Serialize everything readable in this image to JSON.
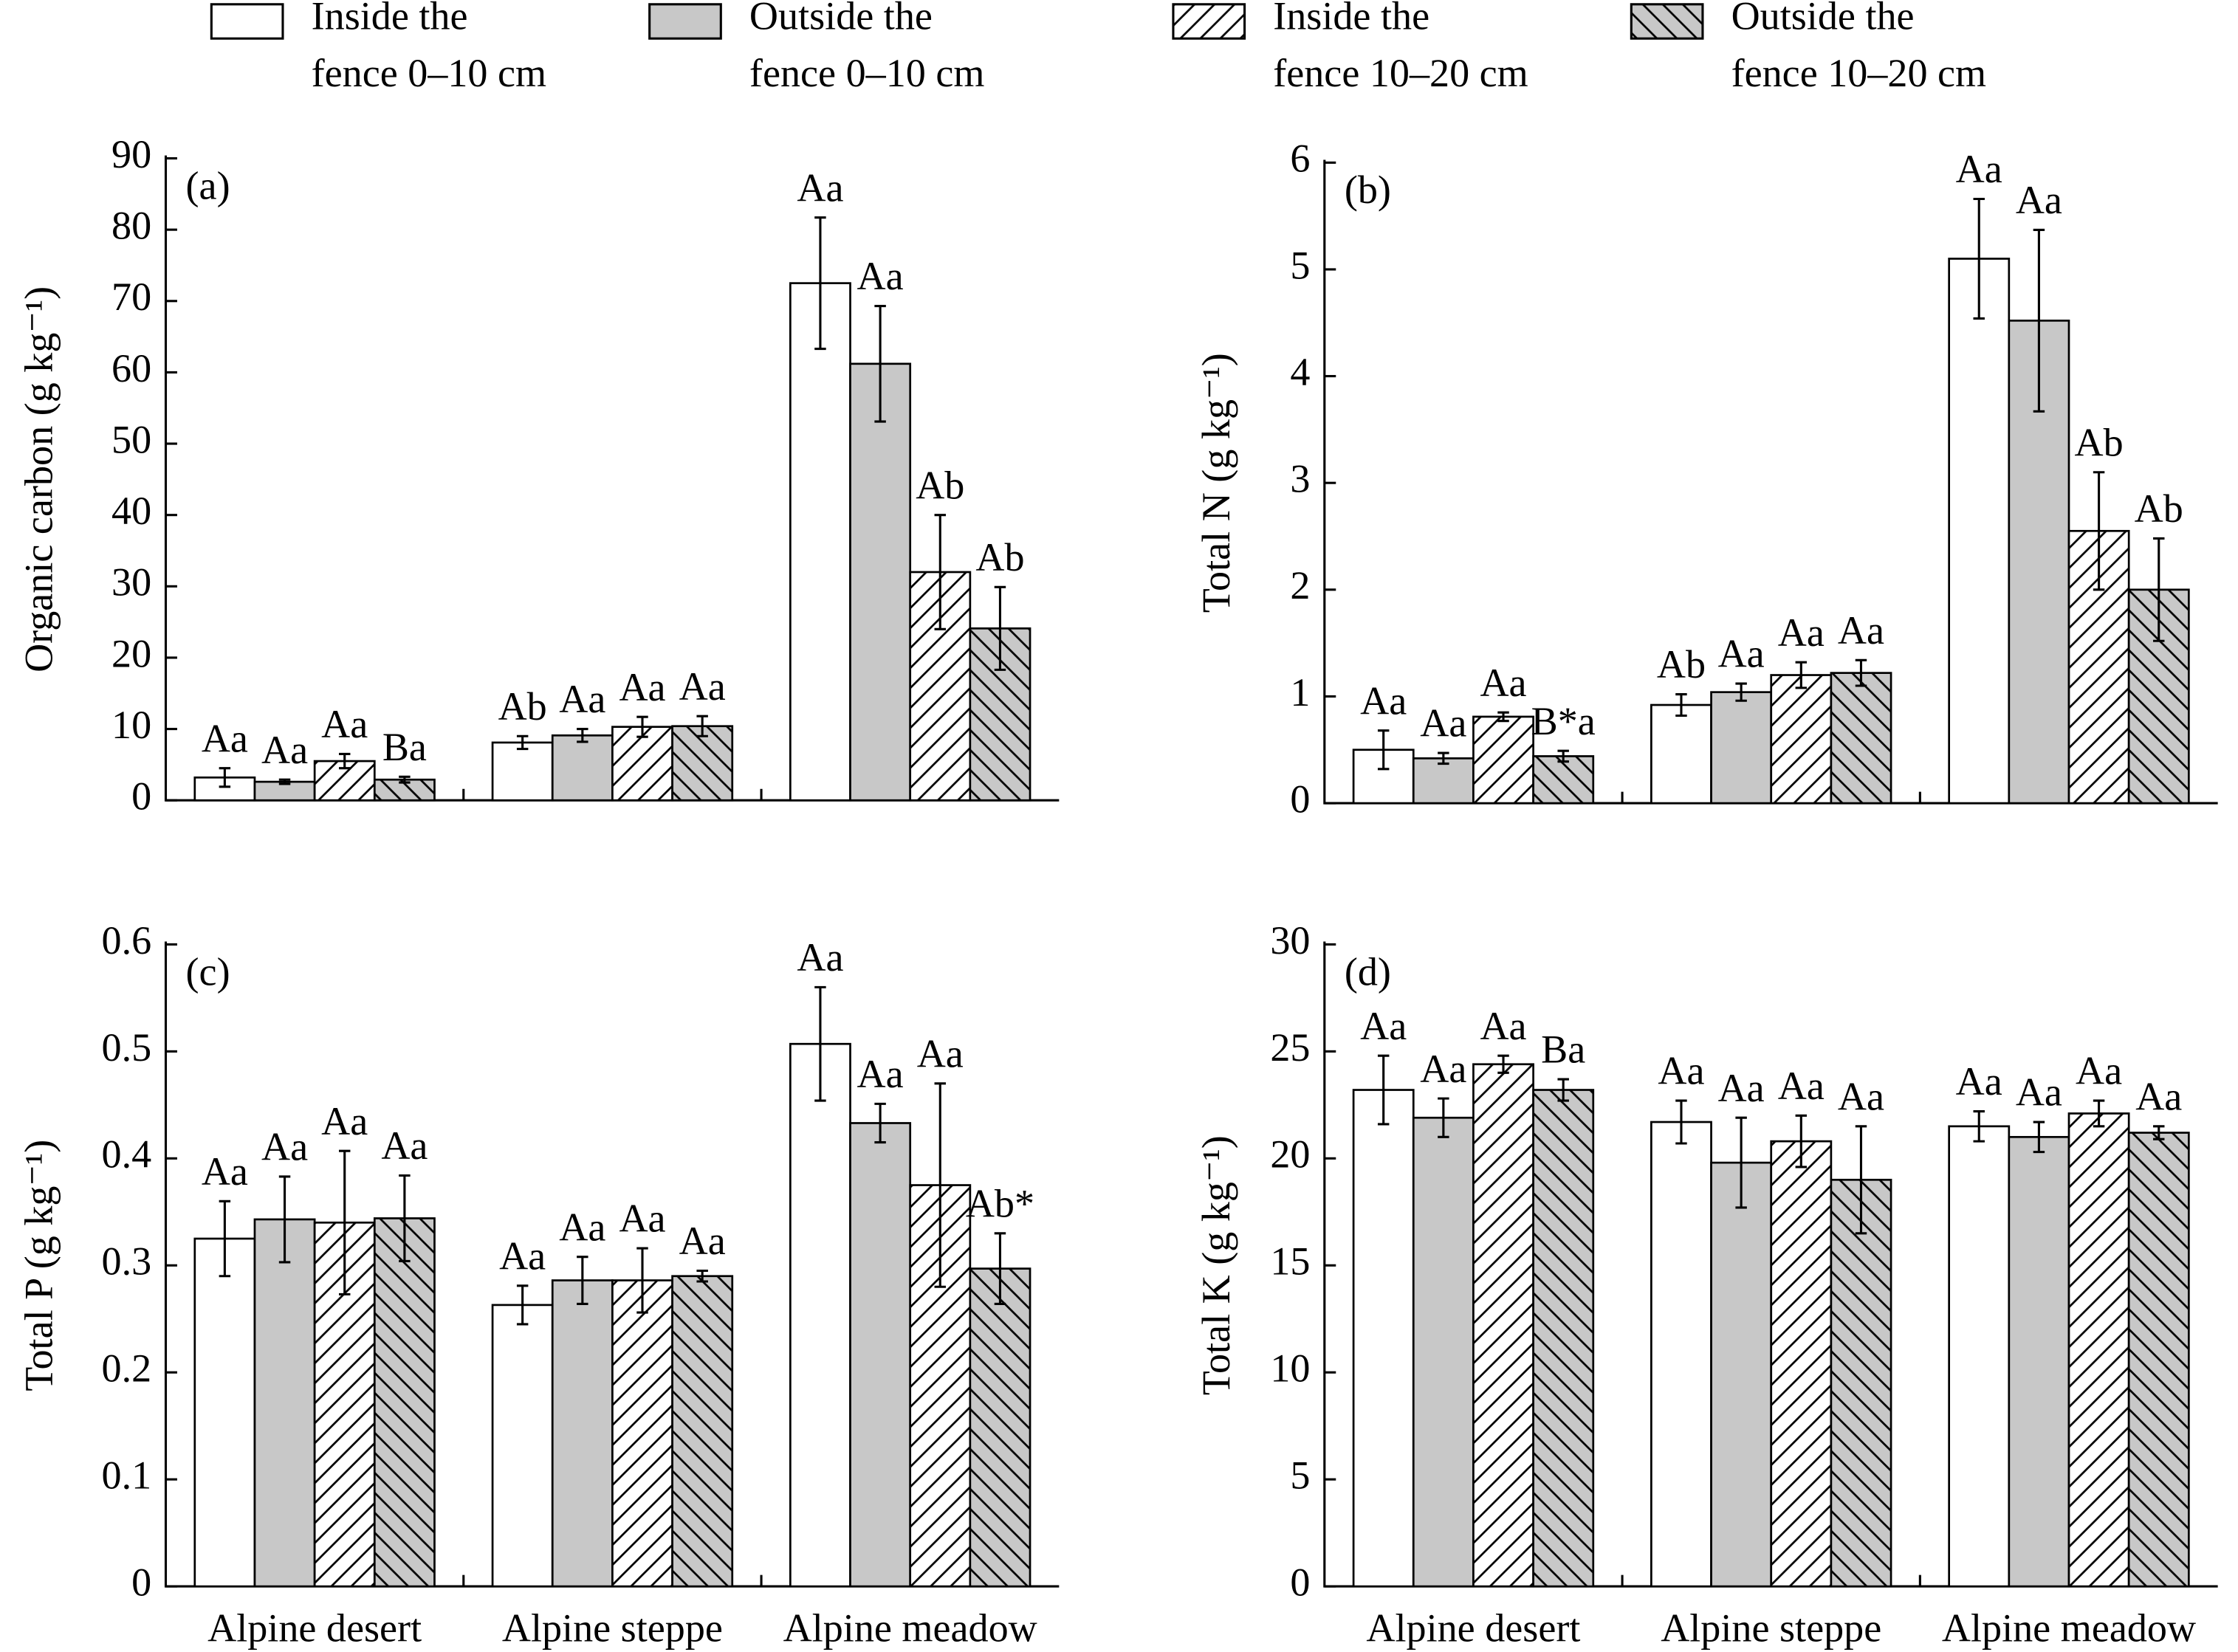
{
  "legend": [
    {
      "lines": [
        "Inside the",
        "fence 0–10 cm"
      ],
      "fill": "#ffffff",
      "pattern": "none"
    },
    {
      "lines": [
        "Outside the",
        "fence 0–10 cm"
      ],
      "fill": "#c8c8c8",
      "pattern": "none"
    },
    {
      "lines": [
        "Inside the",
        "fence 10–20 cm"
      ],
      "fill": "#ffffff",
      "pattern": "forward"
    },
    {
      "lines": [
        "Outside the",
        "fence 10–20 cm"
      ],
      "fill": "#c8c8c8",
      "pattern": "back"
    }
  ],
  "chart_data": [
    {
      "type": "bar",
      "panel": "(a)",
      "ylabel": "Organic carbon (g kg⁻¹)",
      "ylim": [
        0,
        90
      ],
      "yticks": [
        0,
        10,
        20,
        30,
        40,
        50,
        60,
        70,
        80,
        90
      ],
      "series": [
        {
          "values": [
            3.2,
            8.1,
            72.5
          ],
          "errors": [
            1.3,
            0.9,
            9.2
          ],
          "labels": [
            "Aa",
            "Ab",
            "Aa"
          ]
        },
        {
          "values": [
            2.6,
            9.1,
            61.2
          ],
          "errors": [
            0.3,
            0.9,
            8.1
          ],
          "labels": [
            "Aa",
            "Aa",
            "Aa"
          ]
        },
        {
          "values": [
            5.5,
            10.3,
            32
          ],
          "errors": [
            1.0,
            1.4,
            8
          ],
          "labels": [
            "Aa",
            "Aa",
            "Ab"
          ]
        },
        {
          "values": [
            2.9,
            10.4,
            24.1
          ],
          "errors": [
            0.4,
            1.4,
            5.8
          ],
          "labels": [
            "Ba",
            "Aa",
            "Ab"
          ]
        }
      ]
    },
    {
      "type": "bar",
      "panel": "(b)",
      "ylabel": "Total N (g kg⁻¹)",
      "ylim": [
        0,
        6
      ],
      "yticks": [
        0,
        1,
        2,
        3,
        4,
        5,
        6
      ],
      "series": [
        {
          "values": [
            0.5,
            0.92,
            5.1
          ],
          "errors": [
            0.18,
            0.1,
            0.56
          ],
          "labels": [
            "Aa",
            "Ab",
            "Aa"
          ]
        },
        {
          "values": [
            0.42,
            1.04,
            4.52
          ],
          "errors": [
            0.05,
            0.08,
            0.85
          ],
          "labels": [
            "Aa",
            "Aa",
            "Aa"
          ]
        },
        {
          "values": [
            0.81,
            1.2,
            2.55
          ],
          "errors": [
            0.04,
            0.12,
            0.55
          ],
          "labels": [
            "Aa",
            "Aa",
            "Ab"
          ]
        },
        {
          "values": [
            0.44,
            1.22,
            2.0
          ],
          "errors": [
            0.05,
            0.12,
            0.48
          ],
          "labels": [
            "B*a",
            "Aa",
            "Ab"
          ]
        }
      ]
    },
    {
      "type": "bar",
      "panel": "(c)",
      "ylabel": "Total P (g kg⁻¹)",
      "ylim": [
        0,
        0.6
      ],
      "yticks": [
        0,
        0.1,
        0.2,
        0.3,
        0.4,
        0.5,
        0.6
      ],
      "categories": [
        "Alpine desert",
        "Alpine steppe",
        "Alpine meadow"
      ],
      "series": [
        {
          "values": [
            0.325,
            0.263,
            0.507
          ],
          "errors": [
            0.035,
            0.018,
            0.053
          ],
          "labels": [
            "Aa",
            "Aa",
            "Aa"
          ]
        },
        {
          "values": [
            0.343,
            0.286,
            0.433
          ],
          "errors": [
            0.04,
            0.022,
            0.018
          ],
          "labels": [
            "Aa",
            "Aa",
            "Aa"
          ]
        },
        {
          "values": [
            0.34,
            0.286,
            0.375
          ],
          "errors": [
            0.067,
            0.03,
            0.095
          ],
          "labels": [
            "Aa",
            "Aa",
            "Aa"
          ]
        },
        {
          "values": [
            0.344,
            0.29,
            0.297
          ],
          "errors": [
            0.04,
            0.005,
            0.033
          ],
          "labels": [
            "Aa",
            "Aa",
            "Ab*"
          ]
        }
      ]
    },
    {
      "type": "bar",
      "panel": "(d)",
      "ylabel": "Total K (g kg⁻¹)",
      "ylim": [
        0,
        30
      ],
      "yticks": [
        0,
        5,
        10,
        15,
        20,
        25,
        30
      ],
      "categories": [
        "Alpine desert",
        "Alpine steppe",
        "Alpine meadow"
      ],
      "series": [
        {
          "values": [
            23.2,
            21.7,
            21.5
          ],
          "errors": [
            1.6,
            1.0,
            0.7
          ],
          "labels": [
            "Aa",
            "Aa",
            "Aa"
          ]
        },
        {
          "values": [
            21.9,
            19.8,
            21.0
          ],
          "errors": [
            0.9,
            2.1,
            0.7
          ],
          "labels": [
            "Aa",
            "Aa",
            "Aa"
          ]
        },
        {
          "values": [
            24.4,
            20.8,
            22.1
          ],
          "errors": [
            0.4,
            1.2,
            0.6
          ],
          "labels": [
            "Aa",
            "Aa",
            "Aa"
          ]
        },
        {
          "values": [
            23.2,
            19.0,
            21.2
          ],
          "errors": [
            0.5,
            2.5,
            0.3
          ],
          "labels": [
            "Ba",
            "Aa",
            "Aa"
          ]
        }
      ]
    }
  ]
}
